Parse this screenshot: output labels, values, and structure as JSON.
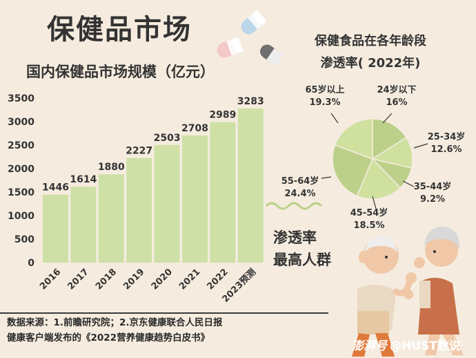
{
  "header": {
    "title": "保健品市场"
  },
  "bar_title": "国内保健品市场规模（亿元）",
  "pie_title": [
    "保健食品在各年龄段",
    "渗透率( 2022年)"
  ],
  "callout": [
    "渗透率",
    "最高人群"
  ],
  "source": [
    "数据来源：1.前瞻研究院；2.京东健康联合人民日报",
    "健康客户端发布的《2022营养健康趋势白皮书》"
  ],
  "watermark": "@HUST数说",
  "watermark_logo": "澎湃号",
  "colors": {
    "bar": "#cfe0a6",
    "pie_a": "#cfe09f",
    "pie_b": "#bcd08a",
    "background": "#f5ecdf"
  },
  "chart_data": [
    {
      "type": "bar",
      "title": "国内保健品市场规模（亿元）",
      "categories": [
        "2016",
        "2017",
        "2018",
        "2019",
        "2020",
        "2021",
        "2022",
        "2023预测"
      ],
      "values": [
        1446,
        1614,
        1880,
        2227,
        2503,
        2708,
        2989,
        3283
      ],
      "y_ticks": [
        0,
        500,
        1000,
        1500,
        2000,
        2500,
        3000,
        3500
      ],
      "ylim": [
        0,
        3500
      ],
      "grid": false
    },
    {
      "type": "pie",
      "title": "保健食品在各年龄段渗透率( 2022年)",
      "slices": [
        {
          "label": "24岁以下",
          "value": 16.0,
          "text": "16%"
        },
        {
          "label": "25-34岁",
          "value": 12.6,
          "text": "12.6%"
        },
        {
          "label": "35-44岁",
          "value": 9.2,
          "text": "9.2%"
        },
        {
          "label": "45-54岁",
          "value": 18.5,
          "text": "18.5%"
        },
        {
          "label": "55-64岁",
          "value": 24.4,
          "text": "24.4%"
        },
        {
          "label": "65岁以上",
          "value": 19.3,
          "text": "19.3%"
        }
      ]
    }
  ]
}
